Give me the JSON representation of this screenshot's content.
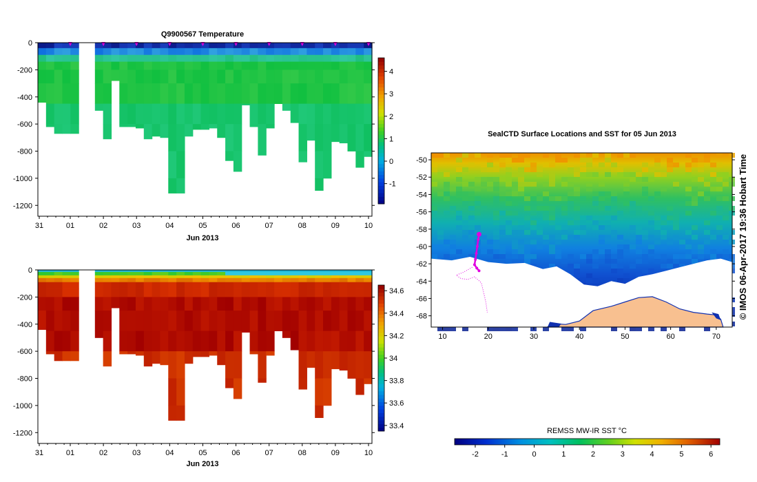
{
  "chart_data": [
    {
      "type": "heatmap",
      "title": "Q9900567  Temperature",
      "xlabel": "Jun 2013",
      "ylabel": "",
      "x_ticks": [
        "31",
        "01",
        "02",
        "03",
        "04",
        "05",
        "06",
        "07",
        "08",
        "09",
        "10"
      ],
      "y_ticks": [
        "0",
        "-200",
        "-400",
        "-600",
        "-800",
        "-1000",
        "-1200"
      ],
      "ylim": [
        -1280,
        0
      ],
      "colorbar": {
        "ticks": [
          "4",
          "3",
          "2",
          "1",
          "0",
          "-1"
        ],
        "range": [
          -1.9,
          4.6
        ]
      },
      "profile_max_depths": [
        -440,
        -620,
        -670,
        -670,
        -670,
        0,
        0,
        -500,
        -710,
        -280,
        -620,
        -620,
        -630,
        -710,
        -690,
        -700,
        -1110,
        -1110,
        -690,
        -640,
        -640,
        -630,
        -700,
        -870,
        -950,
        -460,
        -620,
        -830,
        -630,
        -450,
        -500,
        -590,
        -880,
        -720,
        -1090,
        -1000,
        -730,
        -740,
        -800,
        -920,
        -840
      ],
      "surface_markers": [
        "01",
        "02",
        "03",
        "04",
        "05",
        "06",
        "07",
        "08",
        "09",
        "10"
      ],
      "colors": {
        "marker": "#e000e0"
      }
    },
    {
      "type": "heatmap",
      "title": "",
      "xlabel": "Jun 2013",
      "ylabel": "",
      "x_ticks": [
        "31",
        "01",
        "02",
        "03",
        "04",
        "05",
        "06",
        "07",
        "08",
        "09",
        "10"
      ],
      "y_ticks": [
        "0",
        "-200",
        "-400",
        "-600",
        "-800",
        "-1000",
        "-1200"
      ],
      "ylim": [
        -1280,
        0
      ],
      "colorbar": {
        "ticks": [
          "34.6",
          "34.4",
          "34.2",
          "34",
          "33.8",
          "33.6",
          "33.4"
        ],
        "range": [
          33.35,
          34.65
        ]
      },
      "profile_max_depths": [
        -440,
        -620,
        -670,
        -670,
        -670,
        0,
        0,
        -500,
        -710,
        -280,
        -620,
        -620,
        -630,
        -710,
        -690,
        -700,
        -1110,
        -1110,
        -690,
        -640,
        -640,
        -630,
        -700,
        -870,
        -950,
        -460,
        -620,
        -830,
        -630,
        -450,
        -500,
        -590,
        -880,
        -720,
        -1090,
        -1000,
        -730,
        -740,
        -800,
        -920,
        -840
      ]
    },
    {
      "type": "heatmap",
      "title": "SealCTD Surface Locations and SST for 05 Jun 2013",
      "xlabel": "",
      "ylabel": "",
      "x_ticks": [
        "10",
        "20",
        "30",
        "40",
        "50",
        "60",
        "70"
      ],
      "y_ticks": [
        "-50",
        "-52",
        "-54",
        "-56",
        "-58",
        "-60",
        "-62",
        "-64",
        "-66",
        "-68"
      ],
      "xlim": [
        7.5,
        73.5
      ],
      "ylim": [
        -69.3,
        -49.2
      ],
      "track": [
        [
          18,
          -58.6
        ],
        [
          17.8,
          -59.2
        ],
        [
          17.6,
          -60
        ],
        [
          17.4,
          -60.8
        ],
        [
          17.2,
          -61.5
        ],
        [
          17,
          -62.1
        ],
        [
          17.5,
          -62.5
        ],
        [
          18,
          -62.8
        ]
      ],
      "colorbar": {
        "label": "REMSS MW-IR SST °C",
        "ticks": [
          "-2",
          "-1",
          "0",
          "1",
          "2",
          "3",
          "4",
          "5",
          "6"
        ],
        "range": [
          -2.7,
          6.3
        ]
      },
      "side_text": "© IMOS 06-Apr-2017 19:36 Hobart Time"
    }
  ]
}
